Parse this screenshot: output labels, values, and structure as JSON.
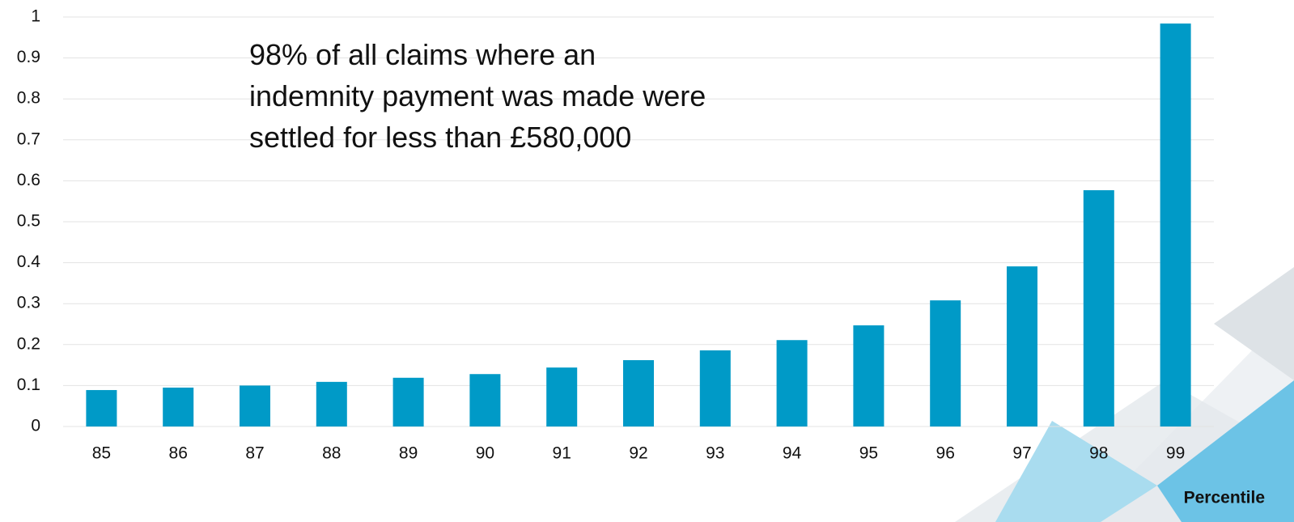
{
  "chart_data": {
    "type": "bar",
    "annotation": [
      "98% of all claims where an",
      "indemnity payment was made were",
      "settled for less than £580,000"
    ],
    "x_label": "Percentile",
    "categories": [
      "85",
      "86",
      "87",
      "88",
      "89",
      "90",
      "91",
      "92",
      "93",
      "94",
      "95",
      "96",
      "97",
      "98",
      "99"
    ],
    "values": [
      0.089,
      0.095,
      0.1,
      0.109,
      0.119,
      0.128,
      0.144,
      0.162,
      0.186,
      0.211,
      0.247,
      0.308,
      0.391,
      0.577,
      0.984
    ],
    "color": "#009ac7",
    "ylim": [
      0,
      1
    ],
    "yticks": [
      0,
      0.1,
      0.2,
      0.3,
      0.4,
      0.5,
      0.6,
      0.7,
      0.8,
      0.9,
      1
    ],
    "grid": true
  }
}
